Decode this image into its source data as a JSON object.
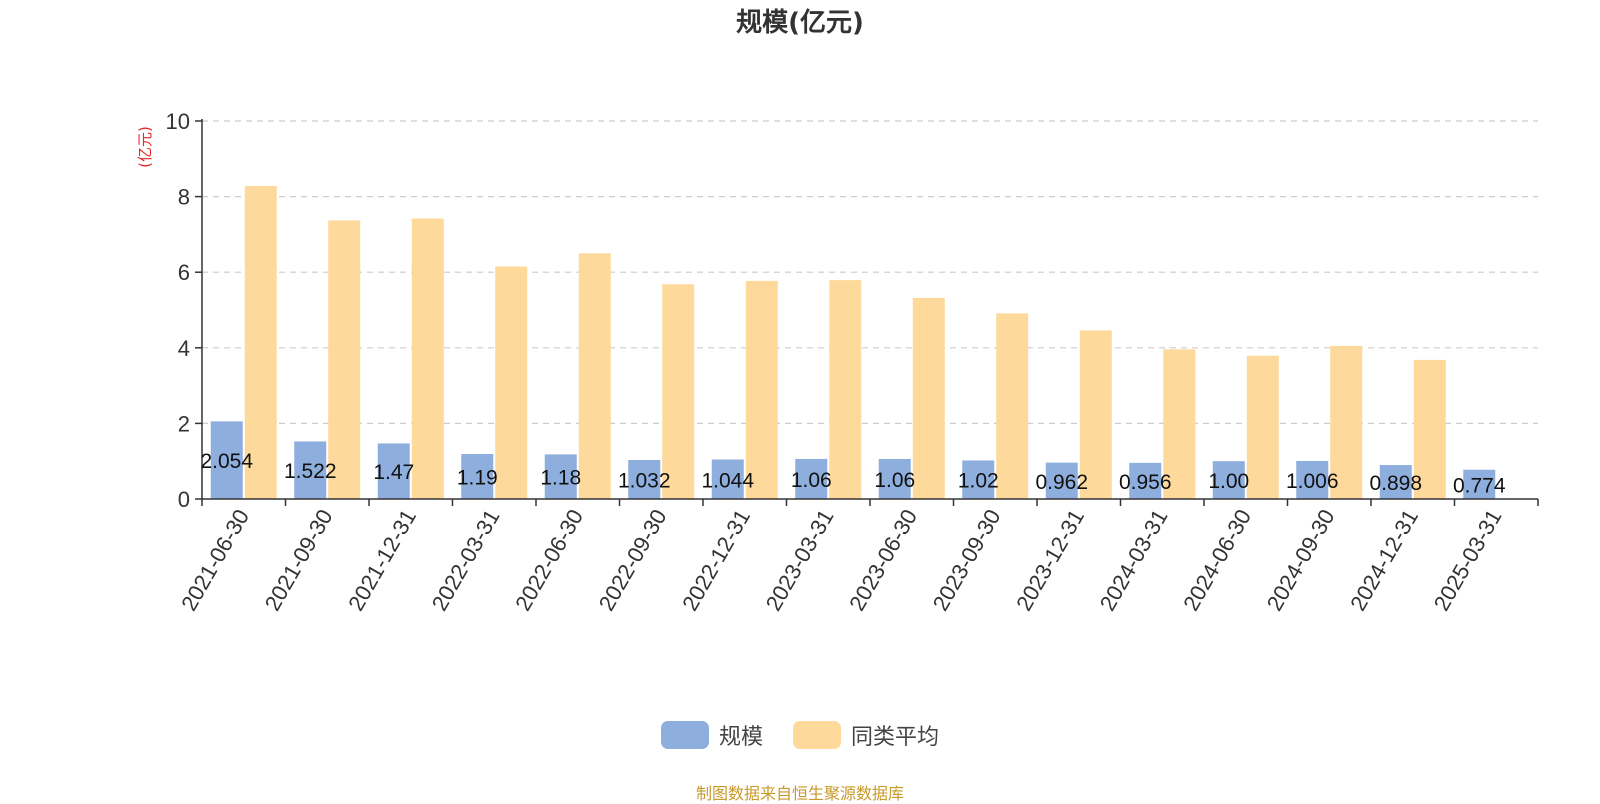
{
  "chart_data": {
    "type": "bar",
    "title": "规模(亿元)",
    "ylabel": "(亿元)",
    "xlabel": "",
    "ylim": [
      0,
      10
    ],
    "yticks": [
      0,
      2,
      4,
      6,
      8,
      10
    ],
    "grid": true,
    "legend_position": "bottom",
    "categories": [
      "2021-06-30",
      "2021-09-30",
      "2021-12-31",
      "2022-03-31",
      "2022-06-30",
      "2022-09-30",
      "2022-12-31",
      "2023-03-31",
      "2023-06-30",
      "2023-09-30",
      "2023-12-31",
      "2024-03-31",
      "2024-06-30",
      "2024-09-30",
      "2024-12-31",
      "2025-03-31"
    ],
    "series": [
      {
        "name": "规模",
        "color": "#8eaedd",
        "values": [
          2.054,
          1.522,
          1.47,
          1.19,
          1.18,
          1.032,
          1.044,
          1.06,
          1.06,
          1.02,
          0.962,
          0.956,
          1.0,
          1.006,
          0.898,
          0.774
        ],
        "data_labels": [
          "2.054",
          "1.522",
          "1.47",
          "1.19",
          "1.18",
          "1.032",
          "1.044",
          "1.06",
          "1.06",
          "1.02",
          "0.962",
          "0.956",
          "1.00",
          "1.006",
          "0.898",
          "0.774"
        ]
      },
      {
        "name": "同类平均",
        "color": "#fdd99b",
        "values": [
          8.28,
          7.37,
          7.42,
          6.15,
          6.5,
          5.68,
          5.77,
          5.79,
          5.32,
          4.91,
          4.46,
          3.96,
          3.79,
          4.05,
          3.68,
          null
        ]
      }
    ]
  },
  "source_text": "制图数据来自恒生聚源数据库",
  "colors": {
    "title": "#333333",
    "ylabel": "#e8262b",
    "source": "#c89a2a",
    "axis": "#333333",
    "grid": "#cccccc"
  }
}
